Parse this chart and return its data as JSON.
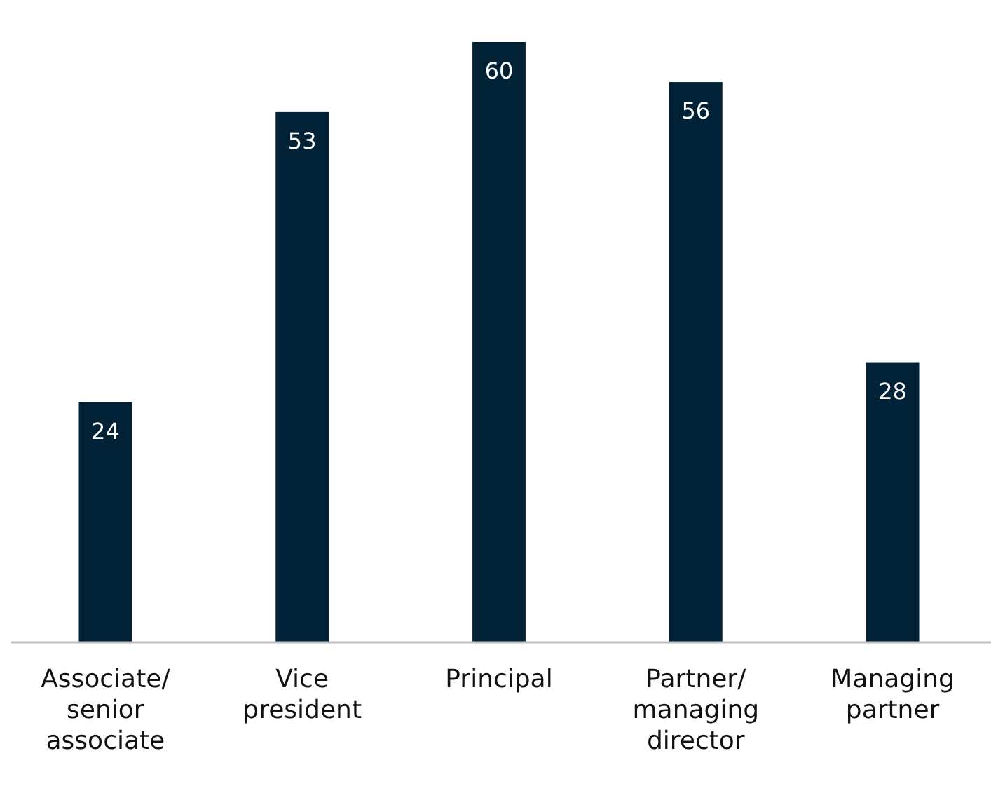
{
  "chart_data": {
    "type": "bar",
    "categories": [
      "Associate/ senior associate",
      "Vice president",
      "Principal",
      "Partner/ managing director",
      "Managing partner"
    ],
    "values": [
      24,
      53,
      60,
      56,
      28
    ],
    "color": "#012236",
    "ylim": [
      0,
      60
    ],
    "data_labels": true
  }
}
